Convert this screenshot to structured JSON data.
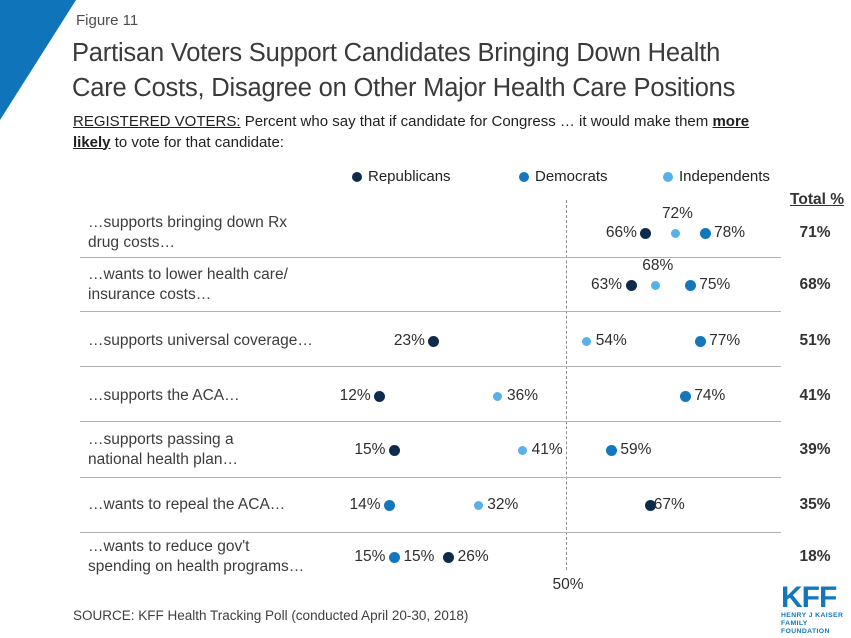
{
  "figure_label": "Figure 11",
  "title_line1": "Partisan Voters Support Candidates Bringing Down Health",
  "title_line2": "Care Costs, Disagree on Other Major Health Care Positions",
  "subtitle": {
    "registered_voters": "REGISTERED VOTERS:",
    "body": " Percent who say that if candidate for Congress … it would make them ",
    "more": "more",
    "likely": "likely",
    "tail": " to vote for that candidate:"
  },
  "legend": [
    {
      "label": "Republicans",
      "party": "republicans"
    },
    {
      "label": "Democrats",
      "party": "democrats"
    },
    {
      "label": "Independents",
      "party": "independents"
    }
  ],
  "total_header": "Total %",
  "reference_label": "50%",
  "source": "SOURCE: KFF Health Tracking Poll (conducted April 20-30, 2018)",
  "logo": {
    "kff": "KFF",
    "sub1": "HENRY J KAISER",
    "sub2": "FAMILY FOUNDATION"
  },
  "colors": {
    "republicans": "#0f2b4c",
    "democrats": "#1476bd",
    "independents": "#59afe7",
    "accent_blue": "#0f74ba",
    "logo_blue": "#1377bd"
  },
  "chart_data": {
    "type": "scatter",
    "subtype": "horizontal-dot-plot",
    "x_range": [
      0,
      100
    ],
    "reference_line": {
      "value": 50,
      "label": "50%"
    },
    "series": [
      "Republicans",
      "Democrats",
      "Independents"
    ],
    "rows": [
      {
        "label_lines": [
          "…supports bringing down Rx",
          "drug costs…"
        ],
        "total": "71%",
        "points": [
          {
            "party": "republicans",
            "value": 66,
            "label": "66%",
            "label_pos": "left"
          },
          {
            "party": "independents",
            "value": 72,
            "label": "72%",
            "label_pos": "above"
          },
          {
            "party": "democrats",
            "value": 78,
            "label": "78%",
            "label_pos": "right"
          }
        ]
      },
      {
        "label_lines": [
          "…wants to lower health care/",
          "insurance costs…"
        ],
        "total": "68%",
        "points": [
          {
            "party": "republicans",
            "value": 63,
            "label": "63%",
            "label_pos": "left"
          },
          {
            "party": "independents",
            "value": 68,
            "label": "68%",
            "label_pos": "above"
          },
          {
            "party": "democrats",
            "value": 75,
            "label": "75%",
            "label_pos": "right"
          }
        ]
      },
      {
        "label_lines": [
          "…supports universal coverage…"
        ],
        "total": "51%",
        "points": [
          {
            "party": "republicans",
            "value": 23,
            "label": "23%",
            "label_pos": "left"
          },
          {
            "party": "independents",
            "value": 54,
            "label": "54%",
            "label_pos": "right"
          },
          {
            "party": "democrats",
            "value": 77,
            "label": "77%",
            "label_pos": "right"
          }
        ]
      },
      {
        "label_lines": [
          "…supports the ACA…"
        ],
        "total": "41%",
        "points": [
          {
            "party": "republicans",
            "value": 12,
            "label": "12%",
            "label_pos": "left"
          },
          {
            "party": "independents",
            "value": 36,
            "label": "36%",
            "label_pos": "right"
          },
          {
            "party": "democrats",
            "value": 74,
            "label": "74%",
            "label_pos": "right"
          }
        ]
      },
      {
        "label_lines": [
          "…supports passing a",
          "national health plan…"
        ],
        "total": "39%",
        "points": [
          {
            "party": "republicans",
            "value": 15,
            "label": "15%",
            "label_pos": "left"
          },
          {
            "party": "independents",
            "value": 41,
            "label": "41%",
            "label_pos": "right"
          },
          {
            "party": "democrats",
            "value": 59,
            "label": "59%",
            "label_pos": "right"
          }
        ]
      },
      {
        "label_lines": [
          "…wants to repeal the ACA…"
        ],
        "total": "35%",
        "points": [
          {
            "party": "democrats",
            "value": 14,
            "label": "14%",
            "label_pos": "left"
          },
          {
            "party": "independents",
            "value": 32,
            "label": "32%",
            "label_pos": "right"
          },
          {
            "party": "republicans",
            "value": 67,
            "label": "67%",
            "label_pos": "right-tight"
          }
        ]
      },
      {
        "label_lines": [
          "…wants to reduce gov't",
          "spending on health programs…"
        ],
        "total": "18%",
        "points": [
          {
            "party": "independents",
            "value": 15,
            "label": "15%",
            "label_pos": "right"
          },
          {
            "party": "democrats",
            "value": 15,
            "label": "15%",
            "label_pos": "left"
          },
          {
            "party": "republicans",
            "value": 26,
            "label": "26%",
            "label_pos": "right"
          }
        ]
      }
    ]
  }
}
